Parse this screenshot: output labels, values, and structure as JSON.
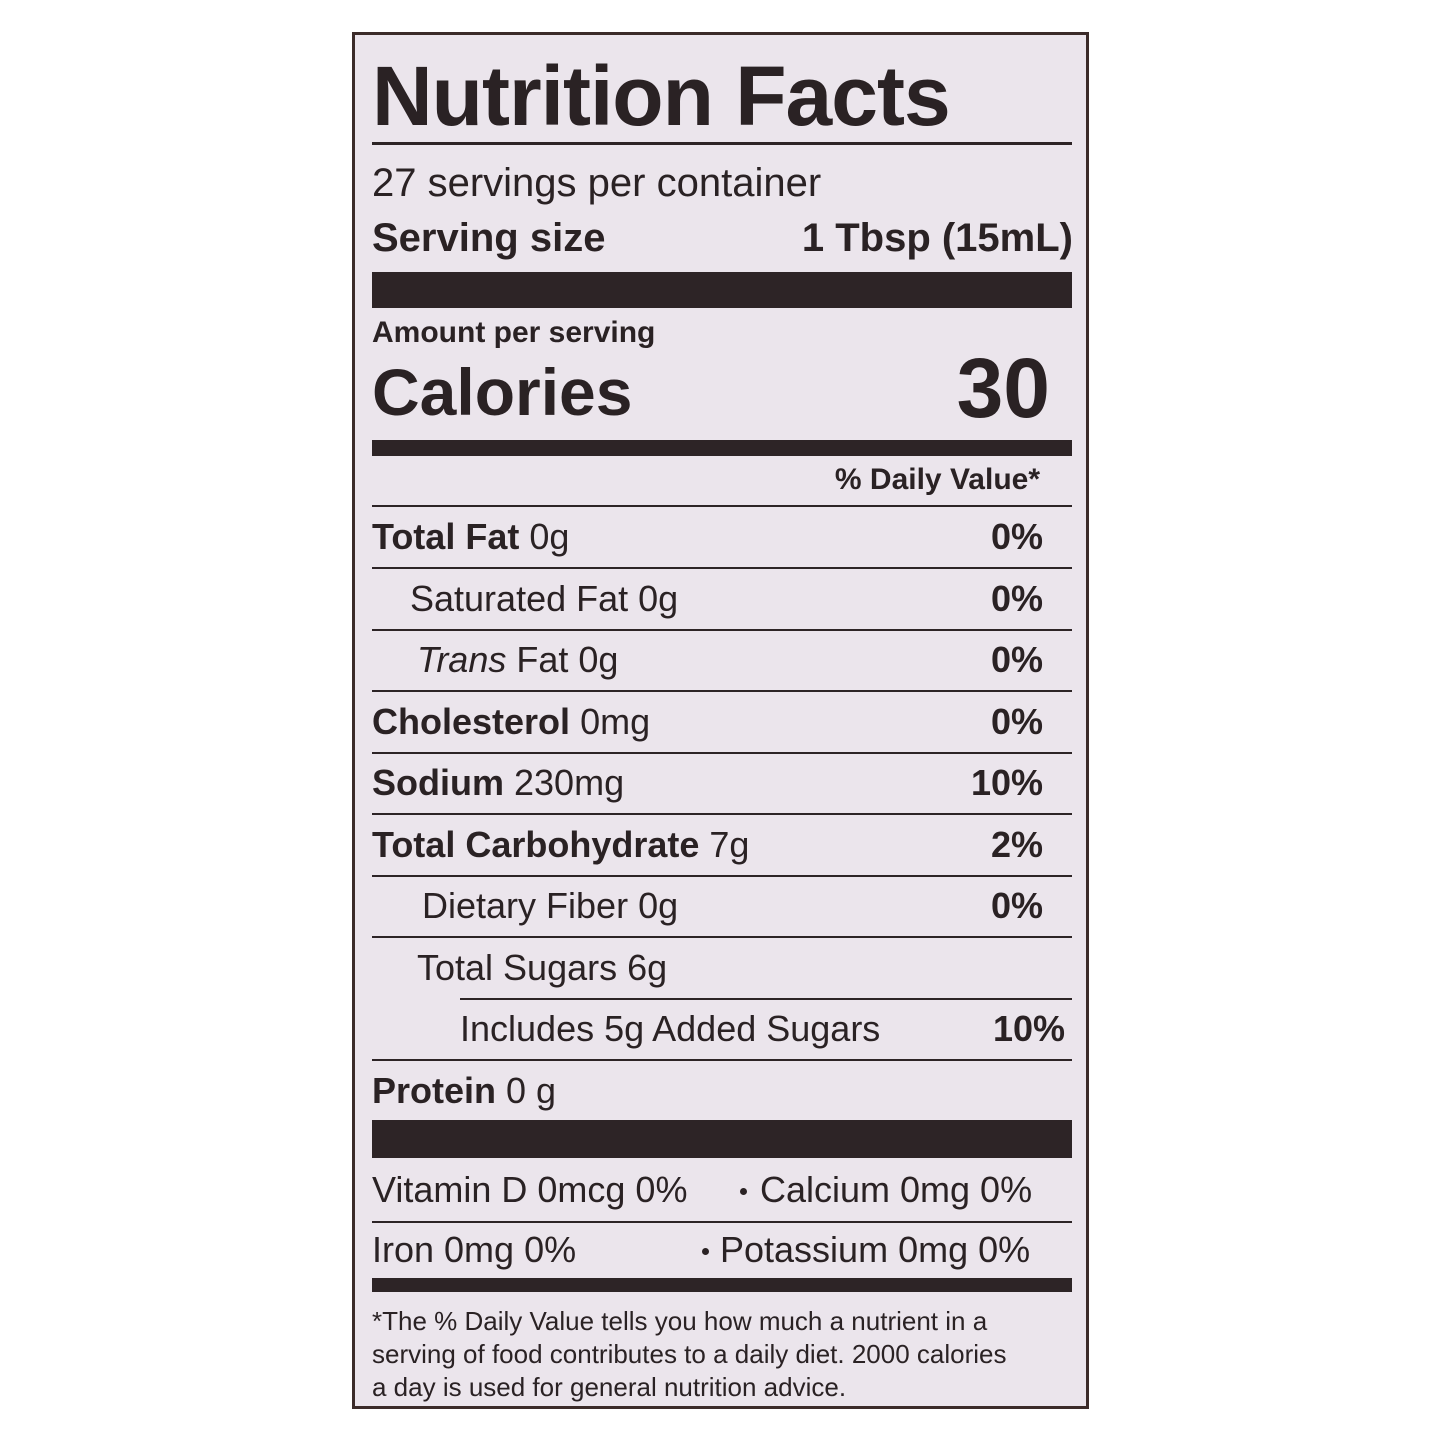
{
  "title": "Nutrition Facts",
  "servings": "27 servings per container",
  "serving_size": {
    "label": "Serving size",
    "value": "1 Tbsp (15mL)"
  },
  "amount_per_serving": "Amount per serving",
  "calories": {
    "label": "Calories",
    "value": "30"
  },
  "daily_value_header": "% Daily Value*",
  "nutrients": [
    {
      "name": "Total Fat",
      "amount": "0g",
      "dv": "0%"
    },
    {
      "name": "Saturated Fat",
      "amount": "0g",
      "dv": "0%"
    },
    {
      "name_italic": "Trans",
      "name": "Fat",
      "amount": "0g",
      "dv": "0%"
    },
    {
      "name": "Cholesterol",
      "amount": "0mg",
      "dv": "0%"
    },
    {
      "name": "Sodium",
      "amount": "230mg",
      "dv": "10%"
    },
    {
      "name": "Total Carbohydrate",
      "amount": "7g",
      "dv": "2%"
    },
    {
      "name": "Dietary Fiber",
      "amount": "0g",
      "dv": "0%"
    },
    {
      "name": "Total Sugars",
      "amount": "6g"
    },
    {
      "name": "Includes 5g Added Sugars",
      "dv": "10%"
    },
    {
      "name": "Protein",
      "amount": "0 g"
    }
  ],
  "vitamins": [
    [
      "Vitamin D 0mcg 0%",
      "Calcium 0mg 0%"
    ],
    [
      "Iron 0mg 0%",
      "Potassium 0mg 0%"
    ]
  ],
  "footnote": [
    "*The % Daily Value tells you how much a nutrient in a",
    "serving of food contributes to a daily diet. 2000 calories",
    "a day is used for general nutrition advice."
  ]
}
